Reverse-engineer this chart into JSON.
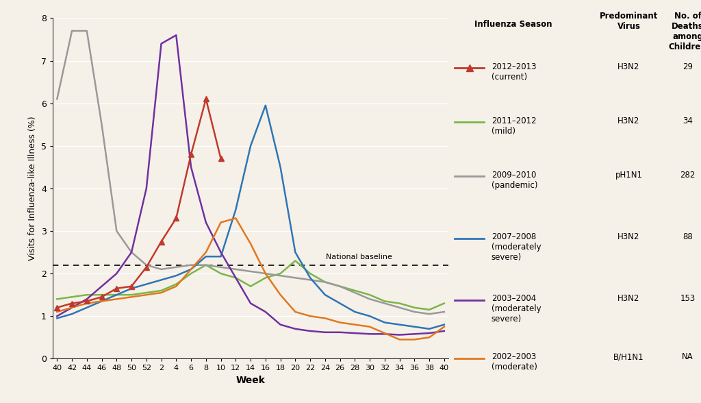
{
  "background_color": "#f5f0e8",
  "baseline": 2.2,
  "xlabel": "Week",
  "ylabel": "Visits for Influenza-like Illness (%)",
  "ylim": [
    0,
    8
  ],
  "yticks": [
    0,
    1,
    2,
    3,
    4,
    5,
    6,
    7,
    8
  ],
  "x_labels": [
    "40",
    "42",
    "44",
    "46",
    "48",
    "50",
    "52",
    "2",
    "4",
    "6",
    "8",
    "10",
    "12",
    "14",
    "16",
    "18",
    "20",
    "22",
    "24",
    "26",
    "28",
    "30",
    "32",
    "34",
    "36",
    "38",
    "40"
  ],
  "series": {
    "2012_2013": {
      "color": "#c0392b",
      "has_marker": true,
      "label": "2012–2013\n(current)",
      "virus": "H3N2",
      "deaths": "29",
      "x": [
        0,
        1,
        2,
        3,
        4,
        5,
        6,
        7,
        8,
        9,
        10,
        11
      ],
      "y": [
        1.2,
        1.3,
        1.35,
        1.45,
        1.65,
        1.7,
        2.15,
        2.75,
        3.3,
        4.8,
        6.1,
        4.7
      ]
    },
    "2011_2012": {
      "color": "#7ab648",
      "has_marker": false,
      "label": "2011–2012\n(mild)",
      "virus": "H3N2",
      "deaths": "34",
      "x": [
        0,
        1,
        2,
        3,
        4,
        5,
        6,
        7,
        8,
        9,
        10,
        11,
        12,
        13,
        14,
        15,
        16,
        17,
        18,
        19,
        20,
        21,
        22,
        23,
        24,
        25,
        26
      ],
      "y": [
        1.4,
        1.45,
        1.5,
        1.5,
        1.5,
        1.5,
        1.55,
        1.6,
        1.75,
        2.0,
        2.2,
        2.0,
        1.9,
        1.7,
        1.9,
        2.0,
        2.3,
        2.0,
        1.8,
        1.7,
        1.6,
        1.5,
        1.35,
        1.3,
        1.2,
        1.15,
        1.3
      ]
    },
    "2009_2010": {
      "color": "#999999",
      "has_marker": false,
      "label": "2009–2010\n(pandemic)",
      "virus": "pH1N1",
      "deaths": "282",
      "x": [
        0,
        1,
        2,
        3,
        4,
        5,
        6,
        7,
        8,
        9,
        10,
        11,
        12,
        13,
        14,
        15,
        16,
        17,
        18,
        19,
        20,
        21,
        22,
        23,
        24,
        25,
        26
      ],
      "y": [
        6.1,
        7.7,
        7.7,
        5.5,
        3.0,
        2.5,
        2.2,
        2.1,
        2.15,
        2.2,
        2.2,
        2.15,
        2.1,
        2.05,
        2.0,
        1.95,
        1.9,
        1.85,
        1.8,
        1.7,
        1.55,
        1.4,
        1.3,
        1.2,
        1.1,
        1.05,
        1.1
      ]
    },
    "2007_2008": {
      "color": "#2e75b6",
      "has_marker": false,
      "label": "2007–2008\n(moderately\nsevere)",
      "virus": "H3N2",
      "deaths": "88",
      "x": [
        0,
        1,
        2,
        3,
        4,
        5,
        6,
        7,
        8,
        9,
        10,
        11,
        12,
        13,
        14,
        15,
        16,
        17,
        18,
        19,
        20,
        21,
        22,
        23,
        24,
        25,
        26
      ],
      "y": [
        0.95,
        1.05,
        1.2,
        1.35,
        1.5,
        1.65,
        1.75,
        1.85,
        1.95,
        2.1,
        2.4,
        2.4,
        3.5,
        5.0,
        5.95,
        4.5,
        2.5,
        1.9,
        1.5,
        1.3,
        1.1,
        1.0,
        0.85,
        0.8,
        0.75,
        0.7,
        0.8
      ]
    },
    "2003_2004": {
      "color": "#7030a0",
      "has_marker": false,
      "label": "2003–2004\n(moderately\nsevere)",
      "virus": "H3N2",
      "deaths": "153",
      "x": [
        0,
        1,
        2,
        3,
        4,
        5,
        6,
        7,
        8,
        9,
        10,
        11,
        12,
        13,
        14,
        15,
        16,
        17,
        18,
        19,
        20,
        21,
        22,
        23,
        24,
        25,
        26
      ],
      "y": [
        1.0,
        1.2,
        1.4,
        1.7,
        2.0,
        2.5,
        4.0,
        7.4,
        7.6,
        4.5,
        3.2,
        2.5,
        1.9,
        1.3,
        1.1,
        0.8,
        0.7,
        0.65,
        0.62,
        0.62,
        0.6,
        0.58,
        0.58,
        0.56,
        0.58,
        0.6,
        0.65
      ]
    },
    "2002_2003": {
      "color": "#e07820",
      "has_marker": false,
      "label": "2002–2003\n(moderate)",
      "virus": "B/H1N1",
      "deaths": "NA",
      "x": [
        0,
        1,
        2,
        3,
        4,
        5,
        6,
        7,
        8,
        9,
        10,
        11,
        12,
        13,
        14,
        15,
        16,
        17,
        18,
        19,
        20,
        21,
        22,
        23,
        24,
        25,
        26
      ],
      "y": [
        1.1,
        1.2,
        1.3,
        1.35,
        1.4,
        1.45,
        1.5,
        1.55,
        1.7,
        2.1,
        2.5,
        3.2,
        3.3,
        2.7,
        2.0,
        1.5,
        1.1,
        1.0,
        0.95,
        0.85,
        0.8,
        0.75,
        0.6,
        0.45,
        0.45,
        0.5,
        0.75
      ]
    }
  },
  "legend_rows": [
    {
      "key": "2012_2013",
      "season": "2012–2013\n(current)",
      "virus": "H3N2",
      "deaths": "29",
      "has_marker": true
    },
    {
      "key": "2011_2012",
      "season": "2011–2012\n(mild)",
      "virus": "H3N2",
      "deaths": "34",
      "has_marker": false
    },
    {
      "key": "2009_2010",
      "season": "2009–2010\n(pandemic)",
      "virus": "pH1N1",
      "deaths": "282",
      "has_marker": false
    },
    {
      "key": "2007_2008",
      "season": "2007–2008\n(moderately\nsevere)",
      "virus": "H3N2",
      "deaths": "88",
      "has_marker": false
    },
    {
      "key": "2003_2004",
      "season": "2003–2004\n(moderately\nsevere)",
      "virus": "H3N2",
      "deaths": "153",
      "has_marker": false
    },
    {
      "key": "2002_2003",
      "season": "2002–2003\n(moderate)",
      "virus": "B/H1N1",
      "deaths": "NA",
      "has_marker": false
    }
  ]
}
